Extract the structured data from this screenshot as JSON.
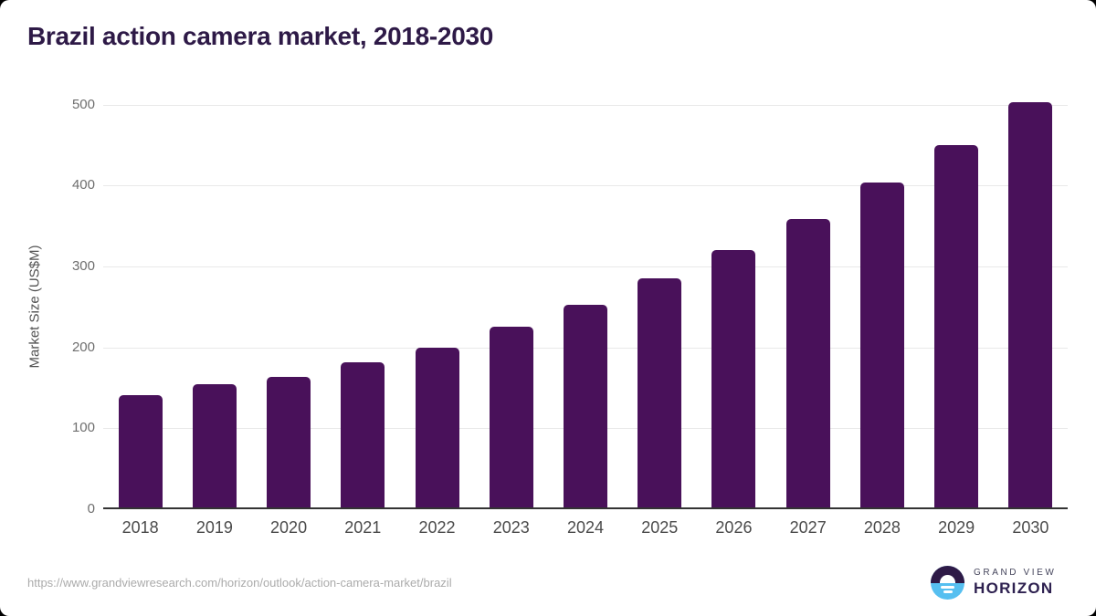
{
  "title": "Brazil action camera market, 2018-2030",
  "chart_data": {
    "type": "bar",
    "title": "Brazil action camera market, 2018-2030",
    "categories": [
      "2018",
      "2019",
      "2020",
      "2021",
      "2022",
      "2023",
      "2024",
      "2025",
      "2026",
      "2027",
      "2028",
      "2029",
      "2030"
    ],
    "values": [
      141,
      155,
      164,
      181,
      200,
      225,
      252,
      285,
      320,
      358,
      404,
      450,
      503
    ],
    "series_name": "Market Size",
    "xlabel": "",
    "ylabel": "Market Size (US$M)",
    "ylim": [
      0,
      500
    ],
    "yticks": [
      0,
      100,
      200,
      300,
      400,
      500
    ],
    "grid": true,
    "legend": false,
    "bar_color": "#49115a"
  },
  "footer": {
    "source_url": "https://www.grandviewresearch.com/horizon/outlook/action-camera-market/brazil",
    "logo": {
      "top": "GRAND VIEW",
      "bottom": "HORIZON",
      "icon": "horizon-sun-icon"
    }
  },
  "colors": {
    "bar": "#49115a",
    "title_text": "#2e1a47",
    "axis_line": "#333333",
    "gridline": "#e9e9e9",
    "y_tick_text": "#6e6e6e",
    "x_tick_text": "#4b4b4b",
    "url_text": "#ababab",
    "logo_blue": "#56bff0",
    "logo_purple": "#2e1a47"
  }
}
